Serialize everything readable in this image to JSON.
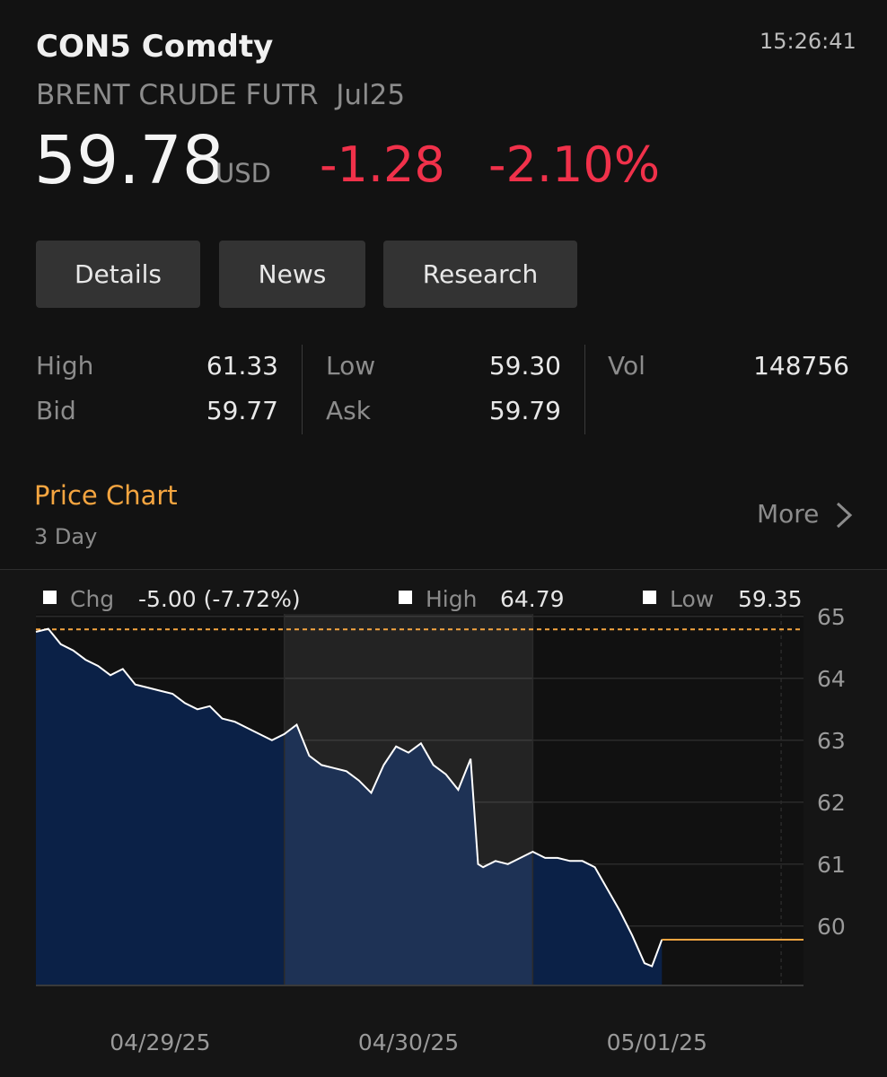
{
  "header": {
    "symbol": "CON5 Comdty",
    "name": "BRENT CRUDE FUTR  Jul25",
    "time": "15:26:41",
    "price": "59.78",
    "currency": "USD",
    "change": "-1.28",
    "change_pct": "-2.10%"
  },
  "buttons": [
    "Details",
    "News",
    "Research"
  ],
  "stats": [
    [
      {
        "label": "High",
        "value": "61.33"
      },
      {
        "label": "Low",
        "value": "59.30"
      },
      {
        "label": "Vol",
        "value": "148756"
      }
    ],
    [
      {
        "label": "Bid",
        "value": "59.77"
      },
      {
        "label": "Ask",
        "value": "59.79"
      }
    ]
  ],
  "section": {
    "title": "Price Chart",
    "subtitle": "3 Day",
    "more": "More"
  },
  "chart_data": {
    "type": "line",
    "legend": {
      "chg_label": "Chg",
      "chg_value": "-5.00 (-7.72%)",
      "high_label": "High",
      "high": 64.79,
      "low_label": "Low",
      "low": 59.35
    },
    "x": [
      0,
      0.05,
      0.1,
      0.15,
      0.2,
      0.25,
      0.3,
      0.35,
      0.4,
      0.45,
      0.5,
      0.55,
      0.6,
      0.65,
      0.7,
      0.75,
      0.8,
      0.85,
      0.9,
      0.95,
      1.0,
      1.05,
      1.1,
      1.15,
      1.2,
      1.25,
      1.3,
      1.35,
      1.4,
      1.45,
      1.5,
      1.55,
      1.6,
      1.65,
      1.7,
      1.75,
      1.78,
      1.8,
      1.85,
      1.9,
      1.95,
      2.0,
      2.05,
      2.1,
      2.15,
      2.2,
      2.25,
      2.3,
      2.35,
      2.4,
      2.45,
      2.48,
      2.52
    ],
    "series": [
      {
        "name": "Price",
        "color": "#ffffff",
        "values": [
          64.75,
          64.8,
          64.55,
          64.45,
          64.3,
          64.2,
          64.05,
          64.15,
          63.9,
          63.85,
          63.8,
          63.75,
          63.6,
          63.5,
          63.55,
          63.35,
          63.3,
          63.2,
          63.1,
          63.0,
          63.1,
          63.25,
          62.75,
          62.6,
          62.55,
          62.5,
          62.35,
          62.15,
          62.6,
          62.9,
          62.8,
          62.95,
          62.6,
          62.45,
          62.2,
          62.7,
          61.0,
          60.95,
          61.05,
          61.0,
          61.1,
          61.2,
          61.1,
          61.1,
          61.05,
          61.05,
          60.95,
          60.6,
          60.25,
          59.85,
          59.4,
          59.35,
          59.78
        ]
      }
    ],
    "last": 59.78,
    "xlim": [
      0,
      3.09
    ],
    "xticks": [
      {
        "value": 0.5,
        "label": "04/29/25"
      },
      {
        "value": 1.5,
        "label": "04/30/25"
      },
      {
        "value": 2.5,
        "label": "05/01/25"
      }
    ],
    "ylim": [
      59.04,
      65.04
    ],
    "yticks": [
      60,
      61,
      62,
      63,
      64,
      65
    ],
    "grid": true
  }
}
